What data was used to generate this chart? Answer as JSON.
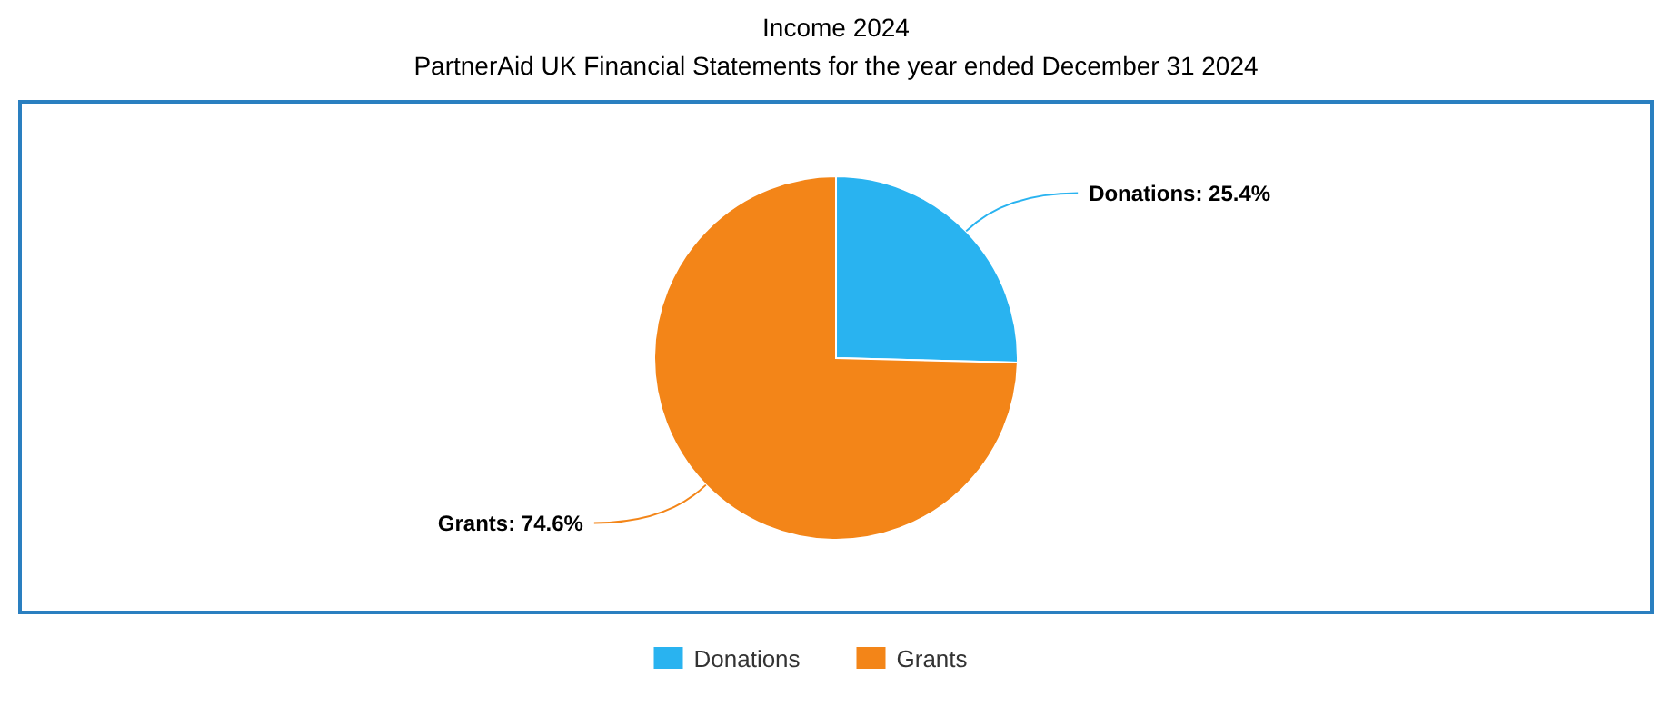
{
  "chart_data": {
    "type": "pie",
    "title": "Income 2024",
    "subtitle": "PartnerAid UK Financial Statements for the year ended December 31 2024",
    "categories": [
      "Donations",
      "Grants"
    ],
    "values": [
      25.4,
      74.6
    ],
    "colors": [
      "#29b3f0",
      "#f38518"
    ],
    "value_labels": [
      "Donations: 25.4%",
      "Grants: 74.6%"
    ],
    "legend": "bottom"
  }
}
